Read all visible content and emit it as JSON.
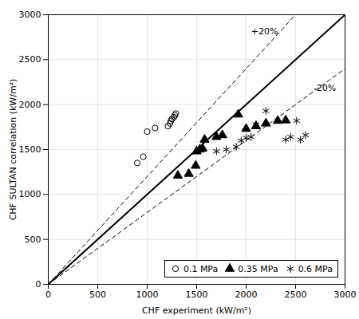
{
  "chart_data": {
    "type": "scatter",
    "xlabel": "CHF experiment (kW/m²)",
    "ylabel": "CHF SULTAN correlation (kW/m²)",
    "xlim": [
      0,
      3000
    ],
    "ylim": [
      0,
      3000
    ],
    "xticks": [
      0,
      500,
      1000,
      1500,
      2000,
      2500,
      3000
    ],
    "yticks": [
      0,
      500,
      1000,
      1500,
      2000,
      2500,
      3000
    ],
    "grid": true,
    "legend": "lower right",
    "series": [
      {
        "name": "0.1 MPa",
        "color": "black",
        "marker": "circle",
        "x": [
          900,
          960,
          1000,
          1080,
          1210,
          1230,
          1240,
          1250,
          1270,
          1280,
          1290
        ],
        "values": [
          1350,
          1420,
          1700,
          1740,
          1760,
          1790,
          1820,
          1840,
          1860,
          1880,
          1900
        ]
      },
      {
        "name": "0.35 MPa",
        "color": "black",
        "marker": "triangle",
        "x": [
          1310,
          1420,
          1490,
          1500,
          1530,
          1560,
          1580,
          1700,
          1760,
          1920,
          2000,
          2100,
          2200,
          2320,
          2400
        ],
        "values": [
          1210,
          1230,
          1320,
          1480,
          1500,
          1510,
          1610,
          1640,
          1660,
          1890,
          1730,
          1760,
          1790,
          1820,
          1825
        ]
      },
      {
        "name": "0.6 MPa",
        "color": "black",
        "marker": "asterisk",
        "x": [
          1700,
          1800,
          1900,
          1950,
          2000,
          2050,
          2100,
          2200,
          2400,
          2450,
          2510,
          2550,
          2600
        ],
        "values": [
          1480,
          1500,
          1530,
          1600,
          1630,
          1640,
          1780,
          1930,
          1610,
          1640,
          1820,
          1610,
          1660
        ]
      }
    ],
    "reference_lines": [
      {
        "x": [
          0,
          3000
        ],
        "y": [
          0,
          3600
        ],
        "color": "black",
        "line_style": "dashed"
      },
      {
        "x": [
          0,
          3000
        ],
        "y": [
          0,
          2400
        ],
        "color": "black",
        "line_style": "dashed"
      },
      {
        "x": [
          0,
          3000
        ],
        "y": [
          0,
          3000
        ],
        "color": "black",
        "line_style": "solid"
      }
    ],
    "annotations": [
      {
        "text": "+20%",
        "x": 2050,
        "y": 2780
      },
      {
        "text": "-20%",
        "x": 2680,
        "y": 2150
      }
    ]
  }
}
